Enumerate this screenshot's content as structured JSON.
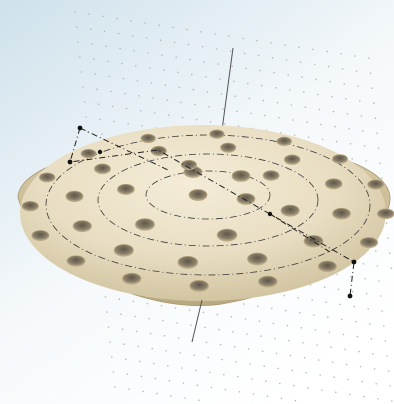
{
  "viewport": {
    "background_top": "#cfe1ec",
    "background_bottom": "#ffffff",
    "background_left": "#d7e6ef"
  },
  "part": {
    "shape": "shallow dome with circular hole pattern",
    "surface_color": "#e8dcc0",
    "edge_color": "#b6a67c",
    "hole_fill": "#8a7f6a",
    "hole_highlight": "#d9ccae",
    "ring_count": 3,
    "center_hole_count": 4,
    "ring_hole_counts": [
      6,
      12,
      16
    ]
  },
  "annotations": {
    "construction_line_color": "#222222",
    "axis_color": "#444444",
    "grid_dot_color": "#b9b9b9"
  }
}
